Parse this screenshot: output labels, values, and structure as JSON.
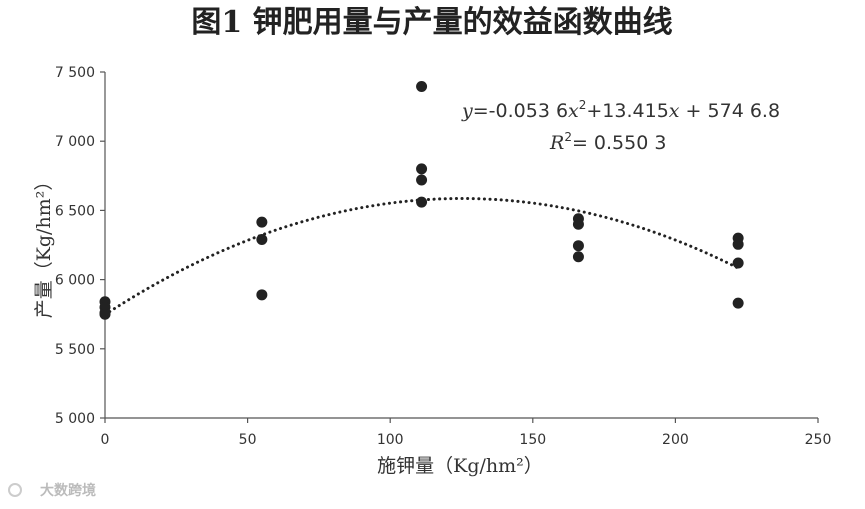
{
  "watermark": "大数跨境",
  "chart_data": {
    "type": "scatter",
    "title": "图1 钾肥用量与产量的效益函数曲线",
    "xlabel": "施钾量（Kg/hm²）",
    "ylabel": "产量（Kg/hm²）",
    "xlim": [
      0,
      250
    ],
    "ylim": [
      5000,
      7500
    ],
    "xticks": [
      0,
      50,
      100,
      150,
      200,
      250
    ],
    "xtick_labels": [
      "0",
      "50",
      "100",
      "150",
      "200",
      "250"
    ],
    "yticks": [
      5000,
      5500,
      6000,
      6500,
      7000,
      7500
    ],
    "ytick_labels": [
      "5 000",
      "5 500",
      "6 000",
      "6 500",
      "7 000",
      "7 500"
    ],
    "grid": false,
    "points": [
      {
        "x": 0,
        "y": 5840
      },
      {
        "x": 0,
        "y": 5800
      },
      {
        "x": 0,
        "y": 5760
      },
      {
        "x": 0,
        "y": 5750
      },
      {
        "x": 55,
        "y": 6415
      },
      {
        "x": 55,
        "y": 6290
      },
      {
        "x": 55,
        "y": 5890
      },
      {
        "x": 111,
        "y": 7395
      },
      {
        "x": 111,
        "y": 6800
      },
      {
        "x": 111,
        "y": 6720
      },
      {
        "x": 111,
        "y": 6560
      },
      {
        "x": 166,
        "y": 6440
      },
      {
        "x": 166,
        "y": 6400
      },
      {
        "x": 166,
        "y": 6245
      },
      {
        "x": 166,
        "y": 6165
      },
      {
        "x": 222,
        "y": 6300
      },
      {
        "x": 222,
        "y": 6255
      },
      {
        "x": 222,
        "y": 6120
      },
      {
        "x": 222,
        "y": 5830
      }
    ],
    "trendline": {
      "type": "polynomial",
      "coefficients": {
        "a": -0.0536,
        "b": 13.415,
        "c": 5746.8
      },
      "x_range": [
        0,
        222
      ],
      "style": "dotted"
    },
    "annotations": {
      "equation": {
        "y_var": "y",
        "part1": "=-0.053 6",
        "x_var1": "x",
        "exp1": "2",
        "part2": "+13.415",
        "x_var2": "x",
        "part3": " + 574 6.8"
      },
      "r_squared": {
        "r_var": "R",
        "exp": "2",
        "value": "= 0.550 3"
      }
    }
  }
}
